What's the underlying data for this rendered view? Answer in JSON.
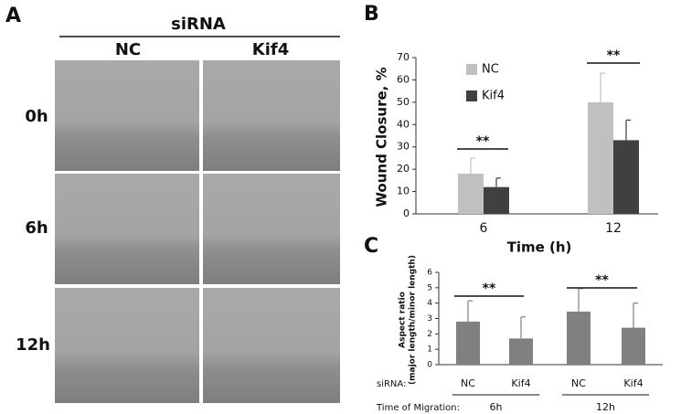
{
  "panel_labels": [
    "A",
    "B",
    "C"
  ],
  "figure_a": {
    "header": "siRNA",
    "columns": [
      "NC",
      "Kif4"
    ],
    "rows": [
      "0h",
      "6h",
      "12h"
    ]
  },
  "chart_data": [
    {
      "type": "bar",
      "ylabel": "Wound Closure, %",
      "xlabel": "Time (h)",
      "categories": [
        "6",
        "12"
      ],
      "series": [
        {
          "name": "NC",
          "color": "#c0c0c0",
          "values": [
            18,
            50
          ],
          "errors": [
            7,
            13
          ]
        },
        {
          "name": "Kif4",
          "color": "#404040",
          "values": [
            12,
            33
          ],
          "errors": [
            4,
            9
          ]
        }
      ],
      "ylim": [
        0,
        70
      ],
      "yticks": [
        0,
        10,
        20,
        30,
        40,
        50,
        60,
        70
      ],
      "annotations": [
        "**",
        "**"
      ]
    },
    {
      "type": "bar",
      "ylabel": [
        "Aspect ratio",
        "(major length/minor length)"
      ],
      "row_labels": [
        "siRNA:",
        "Time of Migration:"
      ],
      "categories": [
        "NC",
        "Kif4",
        "NC",
        "Kif4"
      ],
      "groups": [
        "6h",
        "12h"
      ],
      "series": [
        {
          "color": "#808080",
          "values": [
            2.8,
            1.7,
            3.45,
            2.4
          ],
          "errors": [
            1.35,
            1.4,
            1.5,
            1.6
          ]
        }
      ],
      "ylim": [
        0,
        6
      ],
      "yticks": [
        0,
        1,
        2,
        3,
        4,
        5,
        6
      ],
      "annotations": [
        "**",
        "**"
      ]
    }
  ]
}
